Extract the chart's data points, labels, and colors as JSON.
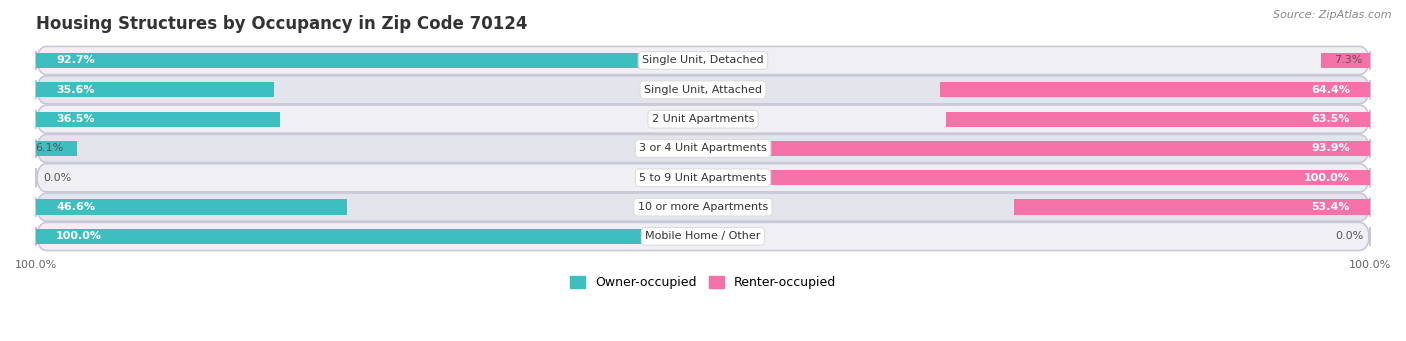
{
  "title": "Housing Structures by Occupancy in Zip Code 70124",
  "source": "Source: ZipAtlas.com",
  "categories": [
    "Single Unit, Detached",
    "Single Unit, Attached",
    "2 Unit Apartments",
    "3 or 4 Unit Apartments",
    "5 to 9 Unit Apartments",
    "10 or more Apartments",
    "Mobile Home / Other"
  ],
  "owner_pct": [
    92.7,
    35.6,
    36.5,
    6.1,
    0.0,
    46.6,
    100.0
  ],
  "renter_pct": [
    7.3,
    64.4,
    63.5,
    93.9,
    100.0,
    53.4,
    0.0
  ],
  "owner_color": "#3DBFBF",
  "renter_color": "#F472A8",
  "row_bg_light": "#F0F0F4",
  "row_bg_dark": "#E4E4EC",
  "title_fontsize": 12,
  "bar_height": 0.52,
  "legend_owner": "Owner-occupied",
  "legend_renter": "Renter-occupied",
  "xlim": [
    0,
    100
  ],
  "label_split": 50
}
